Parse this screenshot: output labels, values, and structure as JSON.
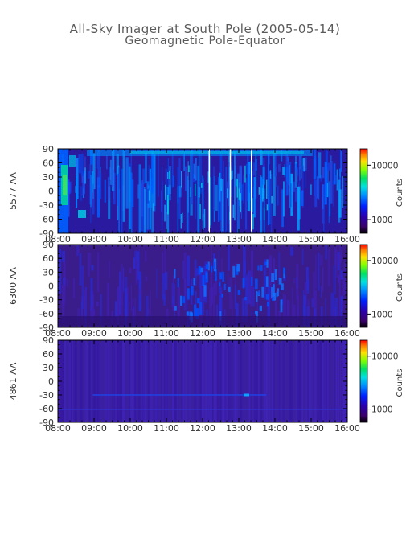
{
  "figure": {
    "title": "All-Sky Imager at South Pole (2005-05-14)",
    "subtitle": "Geomagnetic Pole-Equator"
  },
  "chart_data": [
    {
      "type": "heatmap",
      "ylabel": "5577 AA",
      "x_ticks": [
        "08:00",
        "09:00",
        "10:00",
        "11:00",
        "12:00",
        "13:00",
        "14:00",
        "15:00",
        "16:00"
      ],
      "x_range": [
        "08:00",
        "16:00"
      ],
      "y_ticks": [
        90,
        60,
        30,
        0,
        -30,
        -60,
        -90
      ],
      "ylim": [
        -90,
        90
      ],
      "colorbar": {
        "label": "Counts",
        "ticks": [
          10000,
          1000
        ],
        "tick_labels": [
          "10000",
          "1000"
        ],
        "scale": "log"
      },
      "gaps": [
        "12:10",
        "12:45",
        "13:20"
      ]
    },
    {
      "type": "heatmap",
      "ylabel": "6300 AA",
      "x_ticks": [
        "08:00",
        "09:00",
        "10:00",
        "11:00",
        "12:00",
        "13:00",
        "14:00",
        "15:00",
        "16:00"
      ],
      "x_range": [
        "08:00",
        "16:00"
      ],
      "y_ticks": [
        90,
        60,
        30,
        0,
        -30,
        -60,
        -90
      ],
      "ylim": [
        -90,
        90
      ],
      "colorbar": {
        "label": "Counts",
        "ticks": [
          10000,
          1000
        ],
        "tick_labels": [
          "10000",
          "1000"
        ],
        "scale": "log"
      }
    },
    {
      "type": "heatmap",
      "ylabel": "4861 AA",
      "x_ticks": [
        "08:00",
        "09:00",
        "10:00",
        "11:00",
        "12:00",
        "13:00",
        "14:00",
        "15:00",
        "16:00"
      ],
      "x_range": [
        "08:00",
        "16:00"
      ],
      "y_ticks": [
        90,
        60,
        30,
        0,
        -30,
        -60,
        -90
      ],
      "ylim": [
        -90,
        90
      ],
      "colorbar": {
        "label": "Counts",
        "ticks": [
          10000,
          1000
        ],
        "tick_labels": [
          "10000",
          "1000"
        ],
        "scale": "log"
      }
    }
  ]
}
